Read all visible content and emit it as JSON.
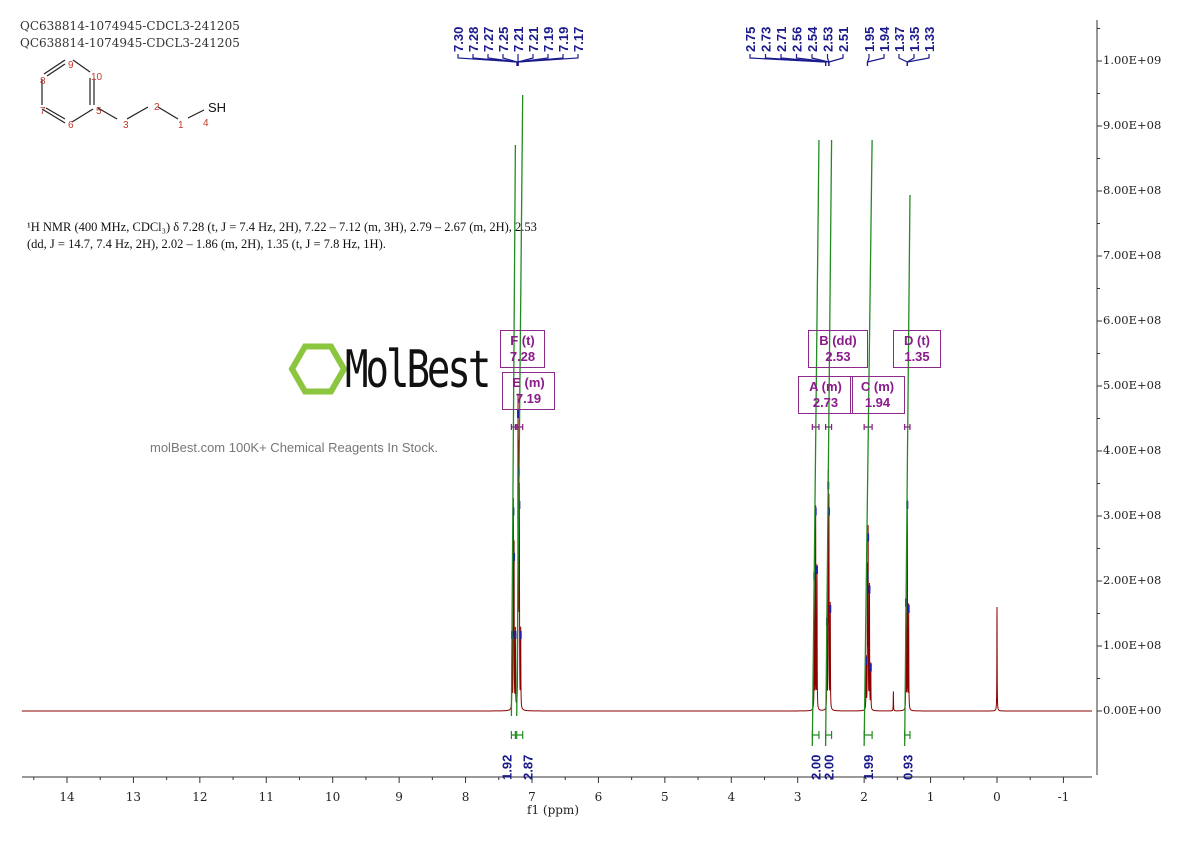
{
  "header": {
    "line1": "QC638814-1074945-CDCL3-241205",
    "line2": "QC638814-1074945-CDCL3-241205"
  },
  "structure": {
    "atom_labels": [
      "1",
      "2",
      "3",
      "4",
      "5",
      "6",
      "7",
      "8",
      "9",
      "10"
    ],
    "group": "SH"
  },
  "description": {
    "line1": "¹H NMR (400 MHz, CDCl₃) δ 7.28 (t, J = 7.4 Hz, 2H), 7.22 – 7.12 (m, 3H), 2.79 – 2.67 (m, 2H), 2.53",
    "line2": "(dd, J = 14.7, 7.4 Hz, 2H), 2.02 – 1.86 (m, 2H), 1.35 (t, J = 7.8 Hz, 1H)."
  },
  "watermark": {
    "logo": "MolBest",
    "tagline": "molBest.com 100K+ Chemical Reagents In Stock."
  },
  "colors": {
    "spectrum": "#8b0000",
    "peak_labels": "#1a1a8c",
    "integrals": "#228b22",
    "multiplets": "#8b1a8b"
  },
  "chart_data": {
    "type": "line",
    "xlabel": "f1 (ppm)",
    "xlim": [
      14.7,
      -1.4
    ],
    "ylim": [
      -100000000.0,
      1050000000.0
    ],
    "x_ticks": [
      "14",
      "13",
      "12",
      "11",
      "10",
      "9",
      "8",
      "7",
      "6",
      "5",
      "4",
      "3",
      "2",
      "1",
      "0",
      "-1"
    ],
    "y_ticks": [
      "0.00E+00",
      "1.00E+08",
      "2.00E+08",
      "3.00E+08",
      "4.00E+08",
      "5.00E+08",
      "6.00E+08",
      "7.00E+08",
      "8.00E+08",
      "9.00E+08",
      "1.00E+09"
    ],
    "peaks": [
      {
        "ppm": 7.3,
        "intensity": 120000000.0
      },
      {
        "ppm": 7.28,
        "intensity": 310000000.0
      },
      {
        "ppm": 7.27,
        "intensity": 240000000.0
      },
      {
        "ppm": 7.25,
        "intensity": 120000000.0
      },
      {
        "ppm": 7.21,
        "intensity": 460000000.0
      },
      {
        "ppm": 7.2,
        "intensity": 370000000.0
      },
      {
        "ppm": 7.19,
        "intensity": 320000000.0
      },
      {
        "ppm": 7.17,
        "intensity": 120000000.0
      },
      {
        "ppm": 2.75,
        "intensity": 210000000.0
      },
      {
        "ppm": 2.73,
        "intensity": 310000000.0
      },
      {
        "ppm": 2.71,
        "intensity": 220000000.0
      },
      {
        "ppm": 2.56,
        "intensity": 140000000.0
      },
      {
        "ppm": 2.54,
        "intensity": 350000000.0
      },
      {
        "ppm": 2.53,
        "intensity": 310000000.0
      },
      {
        "ppm": 2.51,
        "intensity": 160000000.0
      },
      {
        "ppm": 1.97,
        "intensity": 80000000.0
      },
      {
        "ppm": 1.95,
        "intensity": 210000000.0
      },
      {
        "ppm": 1.94,
        "intensity": 270000000.0
      },
      {
        "ppm": 1.92,
        "intensity": 190000000.0
      },
      {
        "ppm": 1.9,
        "intensity": 70000000.0
      },
      {
        "ppm": 1.56,
        "intensity": 30000000.0
      },
      {
        "ppm": 1.37,
        "intensity": 170000000.0
      },
      {
        "ppm": 1.35,
        "intensity": 320000000.0
      },
      {
        "ppm": 1.33,
        "intensity": 160000000.0
      },
      {
        "ppm": 0.0,
        "intensity": 160000000.0
      }
    ],
    "peak_labels_aromatic": [
      "7.30",
      "7.28",
      "7.27",
      "7.25",
      "7.21",
      "7.21",
      "7.19",
      "7.19",
      "7.17"
    ],
    "peak_labels_aliphatic": [
      "2.75",
      "2.73",
      "2.71",
      "2.56",
      "2.54",
      "2.53",
      "2.51"
    ],
    "peak_labels_upfield": [
      "1.95",
      "1.94",
      "1.37",
      "1.35",
      "1.33"
    ],
    "multiplets": [
      {
        "label": "F (t)",
        "shift": "7.28"
      },
      {
        "label": "E (m)",
        "shift": "7.19"
      },
      {
        "label": "B (dd)",
        "shift": "2.53"
      },
      {
        "label": "D (t)",
        "shift": "1.35"
      },
      {
        "label": "A (m)",
        "shift": "2.73"
      },
      {
        "label": "C (m)",
        "shift": "1.94"
      }
    ],
    "integrals": [
      {
        "range": [
          7.31,
          7.25
        ],
        "value": "1.92"
      },
      {
        "range": [
          7.23,
          7.14
        ],
        "value": "2.87"
      },
      {
        "range": [
          2.78,
          2.68
        ],
        "value": "2.00"
      },
      {
        "range": [
          2.58,
          2.49
        ],
        "value": "2.00"
      },
      {
        "range": [
          2.0,
          1.88
        ],
        "value": "1.99"
      },
      {
        "range": [
          1.39,
          1.31
        ],
        "value": "0.93"
      }
    ]
  }
}
